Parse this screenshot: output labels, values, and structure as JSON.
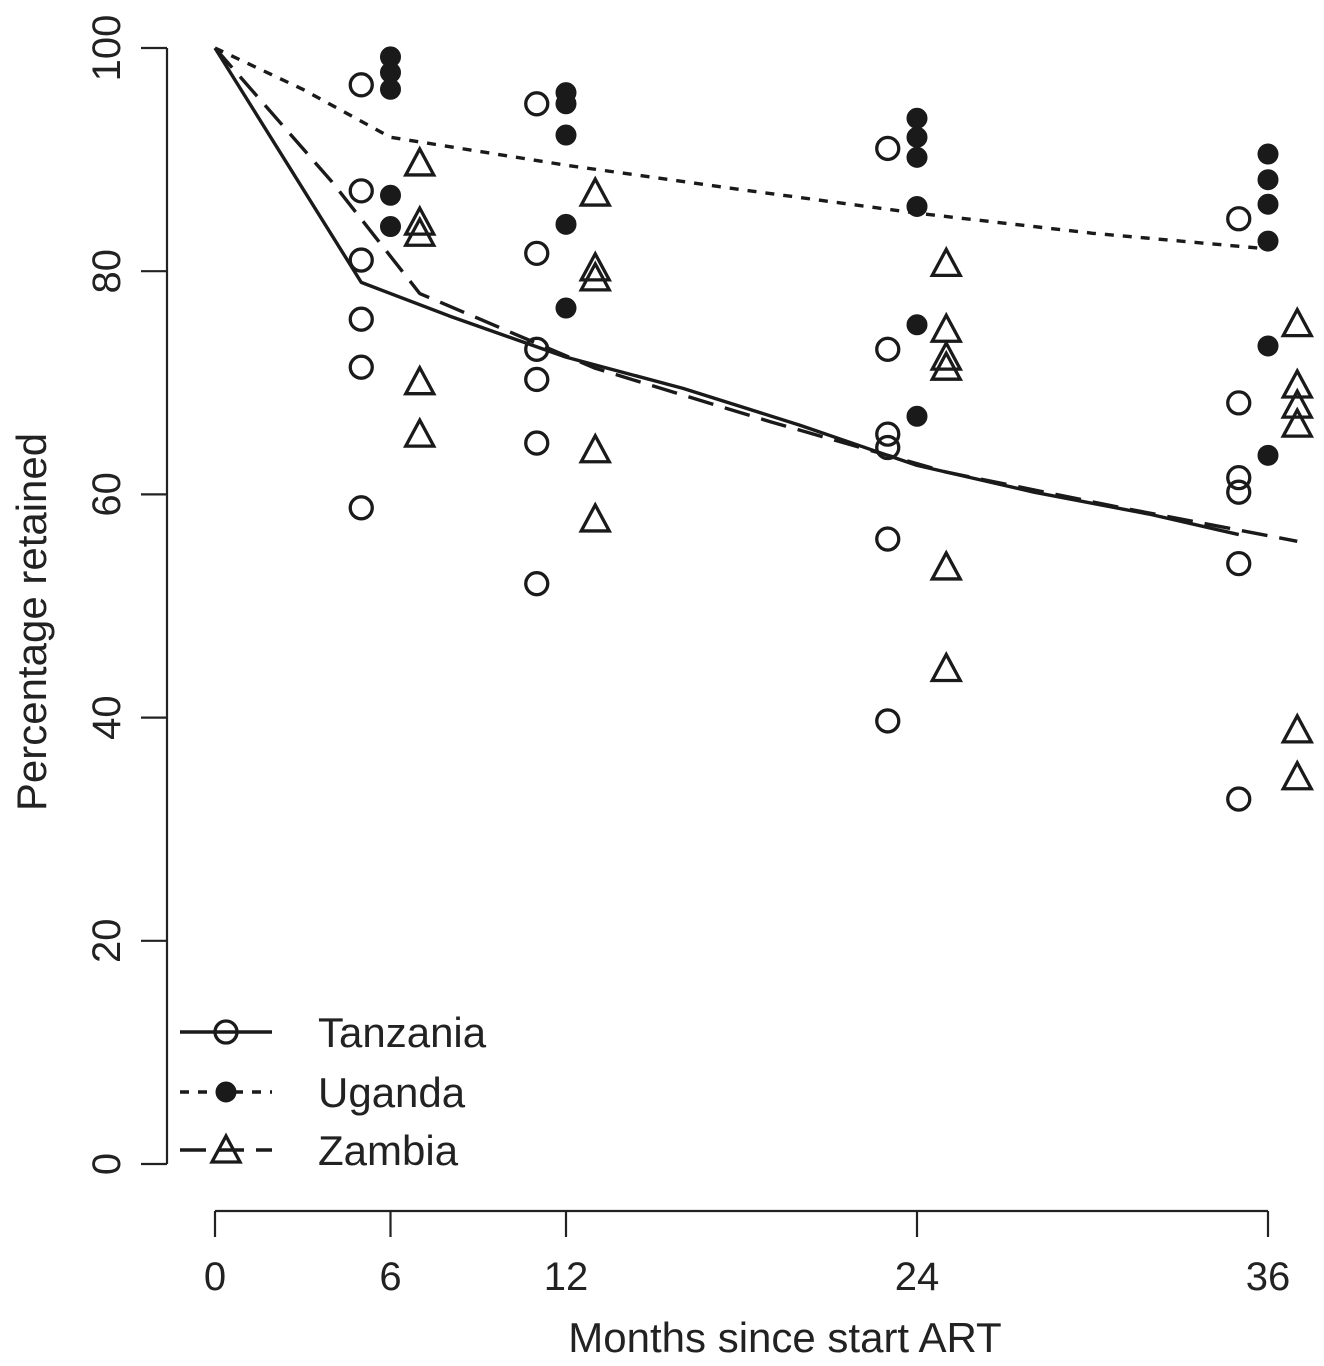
{
  "chart_data": {
    "type": "scatter",
    "title": "",
    "xlabel": "Months since start ART",
    "ylabel": "Percentage retained",
    "xlim": [
      0,
      36
    ],
    "ylim": [
      0,
      100
    ],
    "xticks": [
      0,
      6,
      12,
      24,
      36
    ],
    "xtick_labels": [
      "0",
      "6",
      "12",
      "24",
      "36"
    ],
    "yticks": [
      0,
      20,
      40,
      60,
      80,
      100
    ],
    "ytick_labels": [
      "0",
      "20",
      "40",
      "60",
      "80",
      "100"
    ],
    "grid": false,
    "legend_position": "bottom-left",
    "series": [
      {
        "name": "Tanzania",
        "marker": "open-circle",
        "line_style": "solid",
        "fitted_line": {
          "x": [
            0,
            5,
            8,
            12,
            16,
            20,
            24,
            28,
            32,
            35
          ],
          "y": [
            100,
            79,
            76,
            72.3,
            69.5,
            66.2,
            62.6,
            60.2,
            58.2,
            56.4
          ]
        },
        "points": [
          {
            "x": 5,
            "y": 96.7
          },
          {
            "x": 5,
            "y": 87.2
          },
          {
            "x": 5,
            "y": 81
          },
          {
            "x": 5,
            "y": 75.7
          },
          {
            "x": 5,
            "y": 71.4
          },
          {
            "x": 5,
            "y": 58.8
          },
          {
            "x": 11,
            "y": 95
          },
          {
            "x": 11,
            "y": 81.6
          },
          {
            "x": 11,
            "y": 73
          },
          {
            "x": 11,
            "y": 70.3
          },
          {
            "x": 11,
            "y": 64.6
          },
          {
            "x": 11,
            "y": 52
          },
          {
            "x": 23,
            "y": 91
          },
          {
            "x": 23,
            "y": 73
          },
          {
            "x": 23,
            "y": 65.4
          },
          {
            "x": 23,
            "y": 64.2
          },
          {
            "x": 23,
            "y": 56
          },
          {
            "x": 23,
            "y": 39.7
          },
          {
            "x": 35,
            "y": 84.7
          },
          {
            "x": 35,
            "y": 68.2
          },
          {
            "x": 35,
            "y": 61.5
          },
          {
            "x": 35,
            "y": 60.2
          },
          {
            "x": 35,
            "y": 53.8
          },
          {
            "x": 35,
            "y": 32.7
          }
        ]
      },
      {
        "name": "Uganda",
        "marker": "filled-circle",
        "line_style": "dotted",
        "fitted_line": {
          "x": [
            0,
            3,
            6,
            12,
            18,
            24,
            30,
            36
          ],
          "y": [
            100,
            96.3,
            92,
            89.5,
            87.3,
            85.2,
            83.4,
            82
          ]
        },
        "points": [
          {
            "x": 6,
            "y": 99.2
          },
          {
            "x": 6,
            "y": 97.8
          },
          {
            "x": 6,
            "y": 96.3
          },
          {
            "x": 6,
            "y": 86.8
          },
          {
            "x": 6,
            "y": 84
          },
          {
            "x": 12,
            "y": 96
          },
          {
            "x": 12,
            "y": 95
          },
          {
            "x": 12,
            "y": 92.2
          },
          {
            "x": 12,
            "y": 84.2
          },
          {
            "x": 12,
            "y": 76.7
          },
          {
            "x": 24,
            "y": 93.7
          },
          {
            "x": 24,
            "y": 92
          },
          {
            "x": 24,
            "y": 90.2
          },
          {
            "x": 24,
            "y": 85.8
          },
          {
            "x": 24,
            "y": 75.2
          },
          {
            "x": 24,
            "y": 67
          },
          {
            "x": 36,
            "y": 90.5
          },
          {
            "x": 36,
            "y": 88.2
          },
          {
            "x": 36,
            "y": 86
          },
          {
            "x": 36,
            "y": 82.7
          },
          {
            "x": 36,
            "y": 73.3
          },
          {
            "x": 36,
            "y": 63.5
          }
        ]
      },
      {
        "name": "Zambia",
        "marker": "open-triangle",
        "line_style": "dashed",
        "fitted_line": {
          "x": [
            0,
            4,
            7,
            13,
            19,
            25,
            31,
            37
          ],
          "y": [
            100,
            88,
            78,
            71.3,
            66.5,
            62,
            58.8,
            55.8
          ]
        },
        "points": [
          {
            "x": 7,
            "y": 89.7
          },
          {
            "x": 7,
            "y": 84.4
          },
          {
            "x": 7,
            "y": 83.4
          },
          {
            "x": 7,
            "y": 70.1
          },
          {
            "x": 7,
            "y": 65.4
          },
          {
            "x": 13,
            "y": 87
          },
          {
            "x": 13,
            "y": 80.3
          },
          {
            "x": 13,
            "y": 79.4
          },
          {
            "x": 13,
            "y": 64
          },
          {
            "x": 13,
            "y": 57.8
          },
          {
            "x": 25,
            "y": 80.7
          },
          {
            "x": 25,
            "y": 74.8
          },
          {
            "x": 25,
            "y": 72.3
          },
          {
            "x": 25,
            "y": 71.4
          },
          {
            "x": 25,
            "y": 53.5
          },
          {
            "x": 25,
            "y": 44.4
          },
          {
            "x": 37,
            "y": 75.3
          },
          {
            "x": 37,
            "y": 69.8
          },
          {
            "x": 37,
            "y": 68
          },
          {
            "x": 37,
            "y": 66.3
          },
          {
            "x": 37,
            "y": 38.9
          },
          {
            "x": 37,
            "y": 34.7
          }
        ]
      }
    ]
  }
}
